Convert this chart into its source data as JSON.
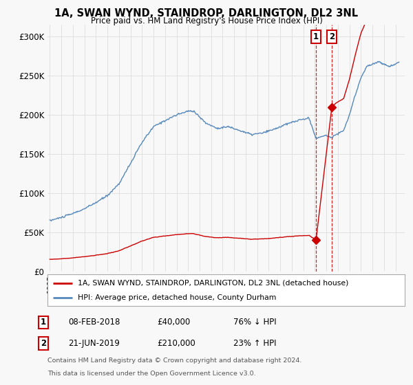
{
  "title": "1A, SWAN WYND, STAINDROP, DARLINGTON, DL2 3NL",
  "subtitle": "Price paid vs. HM Land Registry's House Price Index (HPI)",
  "ylabel_ticks": [
    "£0",
    "£50K",
    "£100K",
    "£150K",
    "£200K",
    "£250K",
    "£300K"
  ],
  "ytick_vals": [
    0,
    50000,
    100000,
    150000,
    200000,
    250000,
    300000
  ],
  "ylim": [
    0,
    315000
  ],
  "xlim_start": 1994.8,
  "xlim_end": 2025.8,
  "legend_line1": "1A, SWAN WYND, STAINDROP, DARLINGTON, DL2 3NL (detached house)",
  "legend_line2": "HPI: Average price, detached house, County Durham",
  "transaction1_date": 2018.1,
  "transaction1_price": 40000,
  "transaction1_label": "1",
  "transaction2_date": 2019.47,
  "transaction2_price": 210000,
  "transaction2_label": "2",
  "footer_line1": "Contains HM Land Registry data © Crown copyright and database right 2024.",
  "footer_line2": "This data is licensed under the Open Government Licence v3.0.",
  "red_color": "#cc0000",
  "blue_color": "#5588bb",
  "background_color": "#f8f8f8",
  "grid_color": "#dddddd"
}
